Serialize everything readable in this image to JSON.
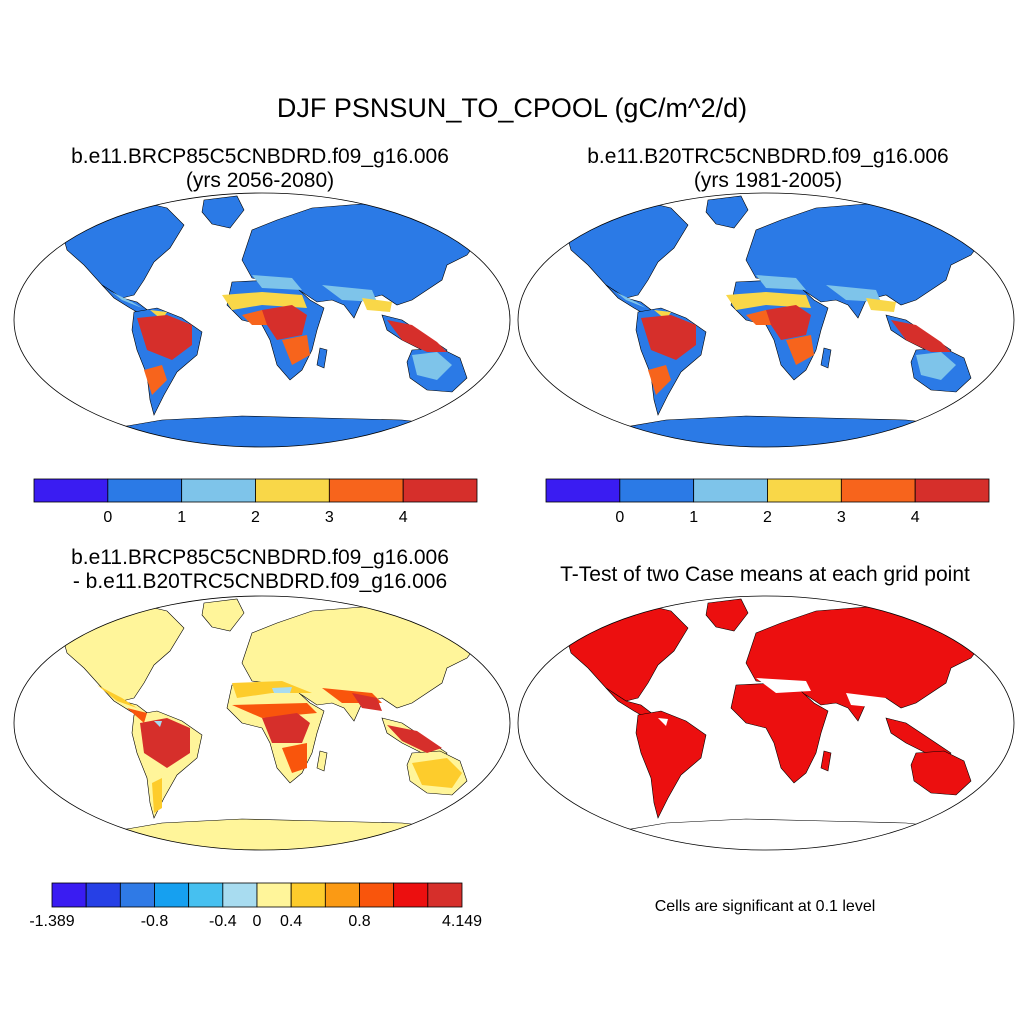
{
  "main_title": "DJF PSNSUN_TO_CPOOL (gC/m^2/d)",
  "panels": [
    {
      "id": "top-left",
      "line1": "b.e11.BRCP85C5CNBDRD.f09_g16.006",
      "line2": "(yrs 2056-2080)"
    },
    {
      "id": "top-right",
      "line1": "b.e11.B20TRC5CNBDRD.f09_g16.006",
      "line2": "(yrs 1981-2005)"
    },
    {
      "id": "bottom-left",
      "line1": "b.e11.BRCP85C5CNBDRD.f09_g16.006",
      "line2": "- b.e11.B20TRC5CNBDRD.f09_g16.006"
    },
    {
      "id": "bottom-right",
      "line1": "T-Test of two Case means at each grid point"
    }
  ],
  "colorbar_abs": {
    "colors": [
      "#3a1cf2",
      "#2b7ae6",
      "#7ec4ea",
      "#f9d748",
      "#f7641c",
      "#d62f2b"
    ],
    "labels": [
      "0",
      "1",
      "2",
      "3",
      "4"
    ]
  },
  "colorbar_diff": {
    "colors": [
      "#3a1cf2",
      "#2640e6",
      "#2f7ae6",
      "#16a0f0",
      "#46c0f0",
      "#a8dcf0",
      "#fff59a",
      "#fdcc2c",
      "#fb9a14",
      "#f9550c",
      "#ec0f0f",
      "#d62f2b"
    ],
    "labels": [
      "-1.389",
      "-0.8",
      "-0.4",
      "0",
      "0.4",
      "0.8",
      "4.149"
    ]
  },
  "ttest_note": "Cells are significant at 0.1 level",
  "map_colors": {
    "abs_base": "#2b7ae6",
    "abs_light": "#7ec4ea",
    "abs_yellow": "#f9d748",
    "abs_orange": "#f7641c",
    "abs_red": "#d62f2b",
    "diff_base": "#fff59a",
    "diff_yellow": "#fdcc2c",
    "diff_orange": "#f9550c",
    "diff_red": "#d62f2b",
    "diff_light": "#a8dcf0",
    "ttest": "#ec0f0f"
  }
}
